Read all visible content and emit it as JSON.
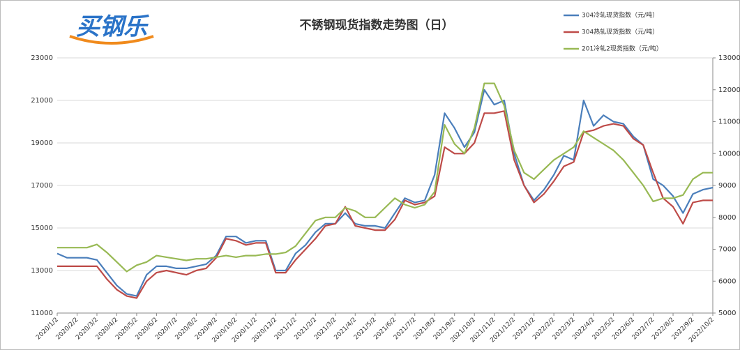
{
  "logo": "买钢乐",
  "chart_data": {
    "type": "line",
    "title": "不锈钢现货指数走势图（日）",
    "categories": [
      "2020/1/2",
      null,
      "2020/2/2",
      null,
      "2020/3/2",
      null,
      "2020/4/2",
      null,
      "2020/5/2",
      null,
      "2020/6/2",
      null,
      "2020/7/2",
      null,
      "2020/8/2",
      null,
      "2020/9/2",
      null,
      "2020/10/2",
      null,
      "2020/11/2",
      null,
      "2020/12/2",
      null,
      "2021/1/2",
      null,
      "2021/2/2",
      null,
      "2021/3/2",
      null,
      "2021/4/2",
      null,
      "2021/5/2",
      null,
      "2021/6/2",
      null,
      "2021/7/2",
      null,
      "2021/8/2",
      null,
      "2021/9/2",
      null,
      "2021/10/2",
      null,
      "2021/11/2",
      null,
      "2021/12/2",
      null,
      "2022/1/2",
      null,
      "2022/2/2",
      null,
      "2022/3/2",
      null,
      "2022/4/2",
      null,
      "2022/5/2",
      null,
      "2022/6/2",
      null,
      "2022/7/2",
      null,
      "2022/8/2",
      null,
      "2022/9/2",
      null,
      "2022/10/2"
    ],
    "series": [
      {
        "name": "304冷轧现货指数（元/吨）",
        "color": "#4a7ebb",
        "values": [
          13800,
          13600,
          13600,
          13600,
          13500,
          12900,
          12300,
          11900,
          11800,
          12800,
          13200,
          13200,
          13100,
          13100,
          13200,
          13300,
          13700,
          14600,
          14600,
          14300,
          14400,
          14400,
          13000,
          13000,
          13800,
          14200,
          14800,
          15200,
          15200,
          15700,
          15200,
          15100,
          15100,
          15000,
          15700,
          16400,
          16200,
          16300,
          17500,
          20400,
          19700,
          18800,
          19500,
          21500,
          20800,
          21000,
          18500,
          17000,
          16300,
          16800,
          17500,
          18400,
          18200,
          21000,
          19800,
          20300,
          20000,
          19900,
          19300,
          18900,
          17300,
          17000,
          16500,
          15700,
          16600,
          16800,
          16900
        ]
      },
      {
        "name": "304热轧现货指数（元/吨）",
        "color": "#be4b48",
        "values": [
          13200,
          13200,
          13200,
          13200,
          13200,
          12600,
          12100,
          11800,
          11700,
          12500,
          12900,
          13000,
          12900,
          12800,
          13000,
          13100,
          13600,
          14500,
          14400,
          14200,
          14300,
          14300,
          12900,
          12900,
          13500,
          14000,
          14500,
          15100,
          15200,
          16000,
          15100,
          15000,
          14900,
          14900,
          15400,
          16300,
          16100,
          16200,
          16500,
          18800,
          18500,
          18500,
          19000,
          20400,
          20400,
          20500,
          18200,
          17000,
          16200,
          16600,
          17200,
          17900,
          18100,
          19500,
          19600,
          19800,
          19900,
          19800,
          19200,
          18900,
          17600,
          16400,
          16000,
          15200,
          16200,
          16300,
          16300
        ]
      },
      {
        "name": "201冷轧2现货指数（元/吨）",
        "color": "#98b954",
        "axis": "y2",
        "values": [
          7050,
          7050,
          7050,
          7050,
          7150,
          6900,
          6600,
          6300,
          6500,
          6600,
          6800,
          6750,
          6700,
          6650,
          6700,
          6700,
          6750,
          6800,
          6750,
          6800,
          6800,
          6850,
          6850,
          6900,
          7100,
          7500,
          7900,
          8000,
          8000,
          8300,
          8200,
          8000,
          8000,
          8300,
          8600,
          8400,
          8300,
          8400,
          8800,
          10900,
          10300,
          10000,
          10800,
          12200,
          12200,
          11500,
          10100,
          9400,
          9200,
          9500,
          9800,
          10000,
          10200,
          10700,
          10500,
          10300,
          10100,
          9800,
          9400,
          9000,
          8500,
          8600,
          8600,
          8700,
          9200,
          9400,
          9400
        ]
      }
    ],
    "ylim": [
      11000,
      23000
    ],
    "yticks": [
      11000,
      13000,
      15000,
      17000,
      19000,
      21000,
      23000
    ],
    "y2lim": [
      5000,
      13000
    ],
    "y2ticks": [
      5000,
      6000,
      7000,
      8000,
      9000,
      10000,
      11000,
      12000,
      13000
    ],
    "grid": true
  }
}
